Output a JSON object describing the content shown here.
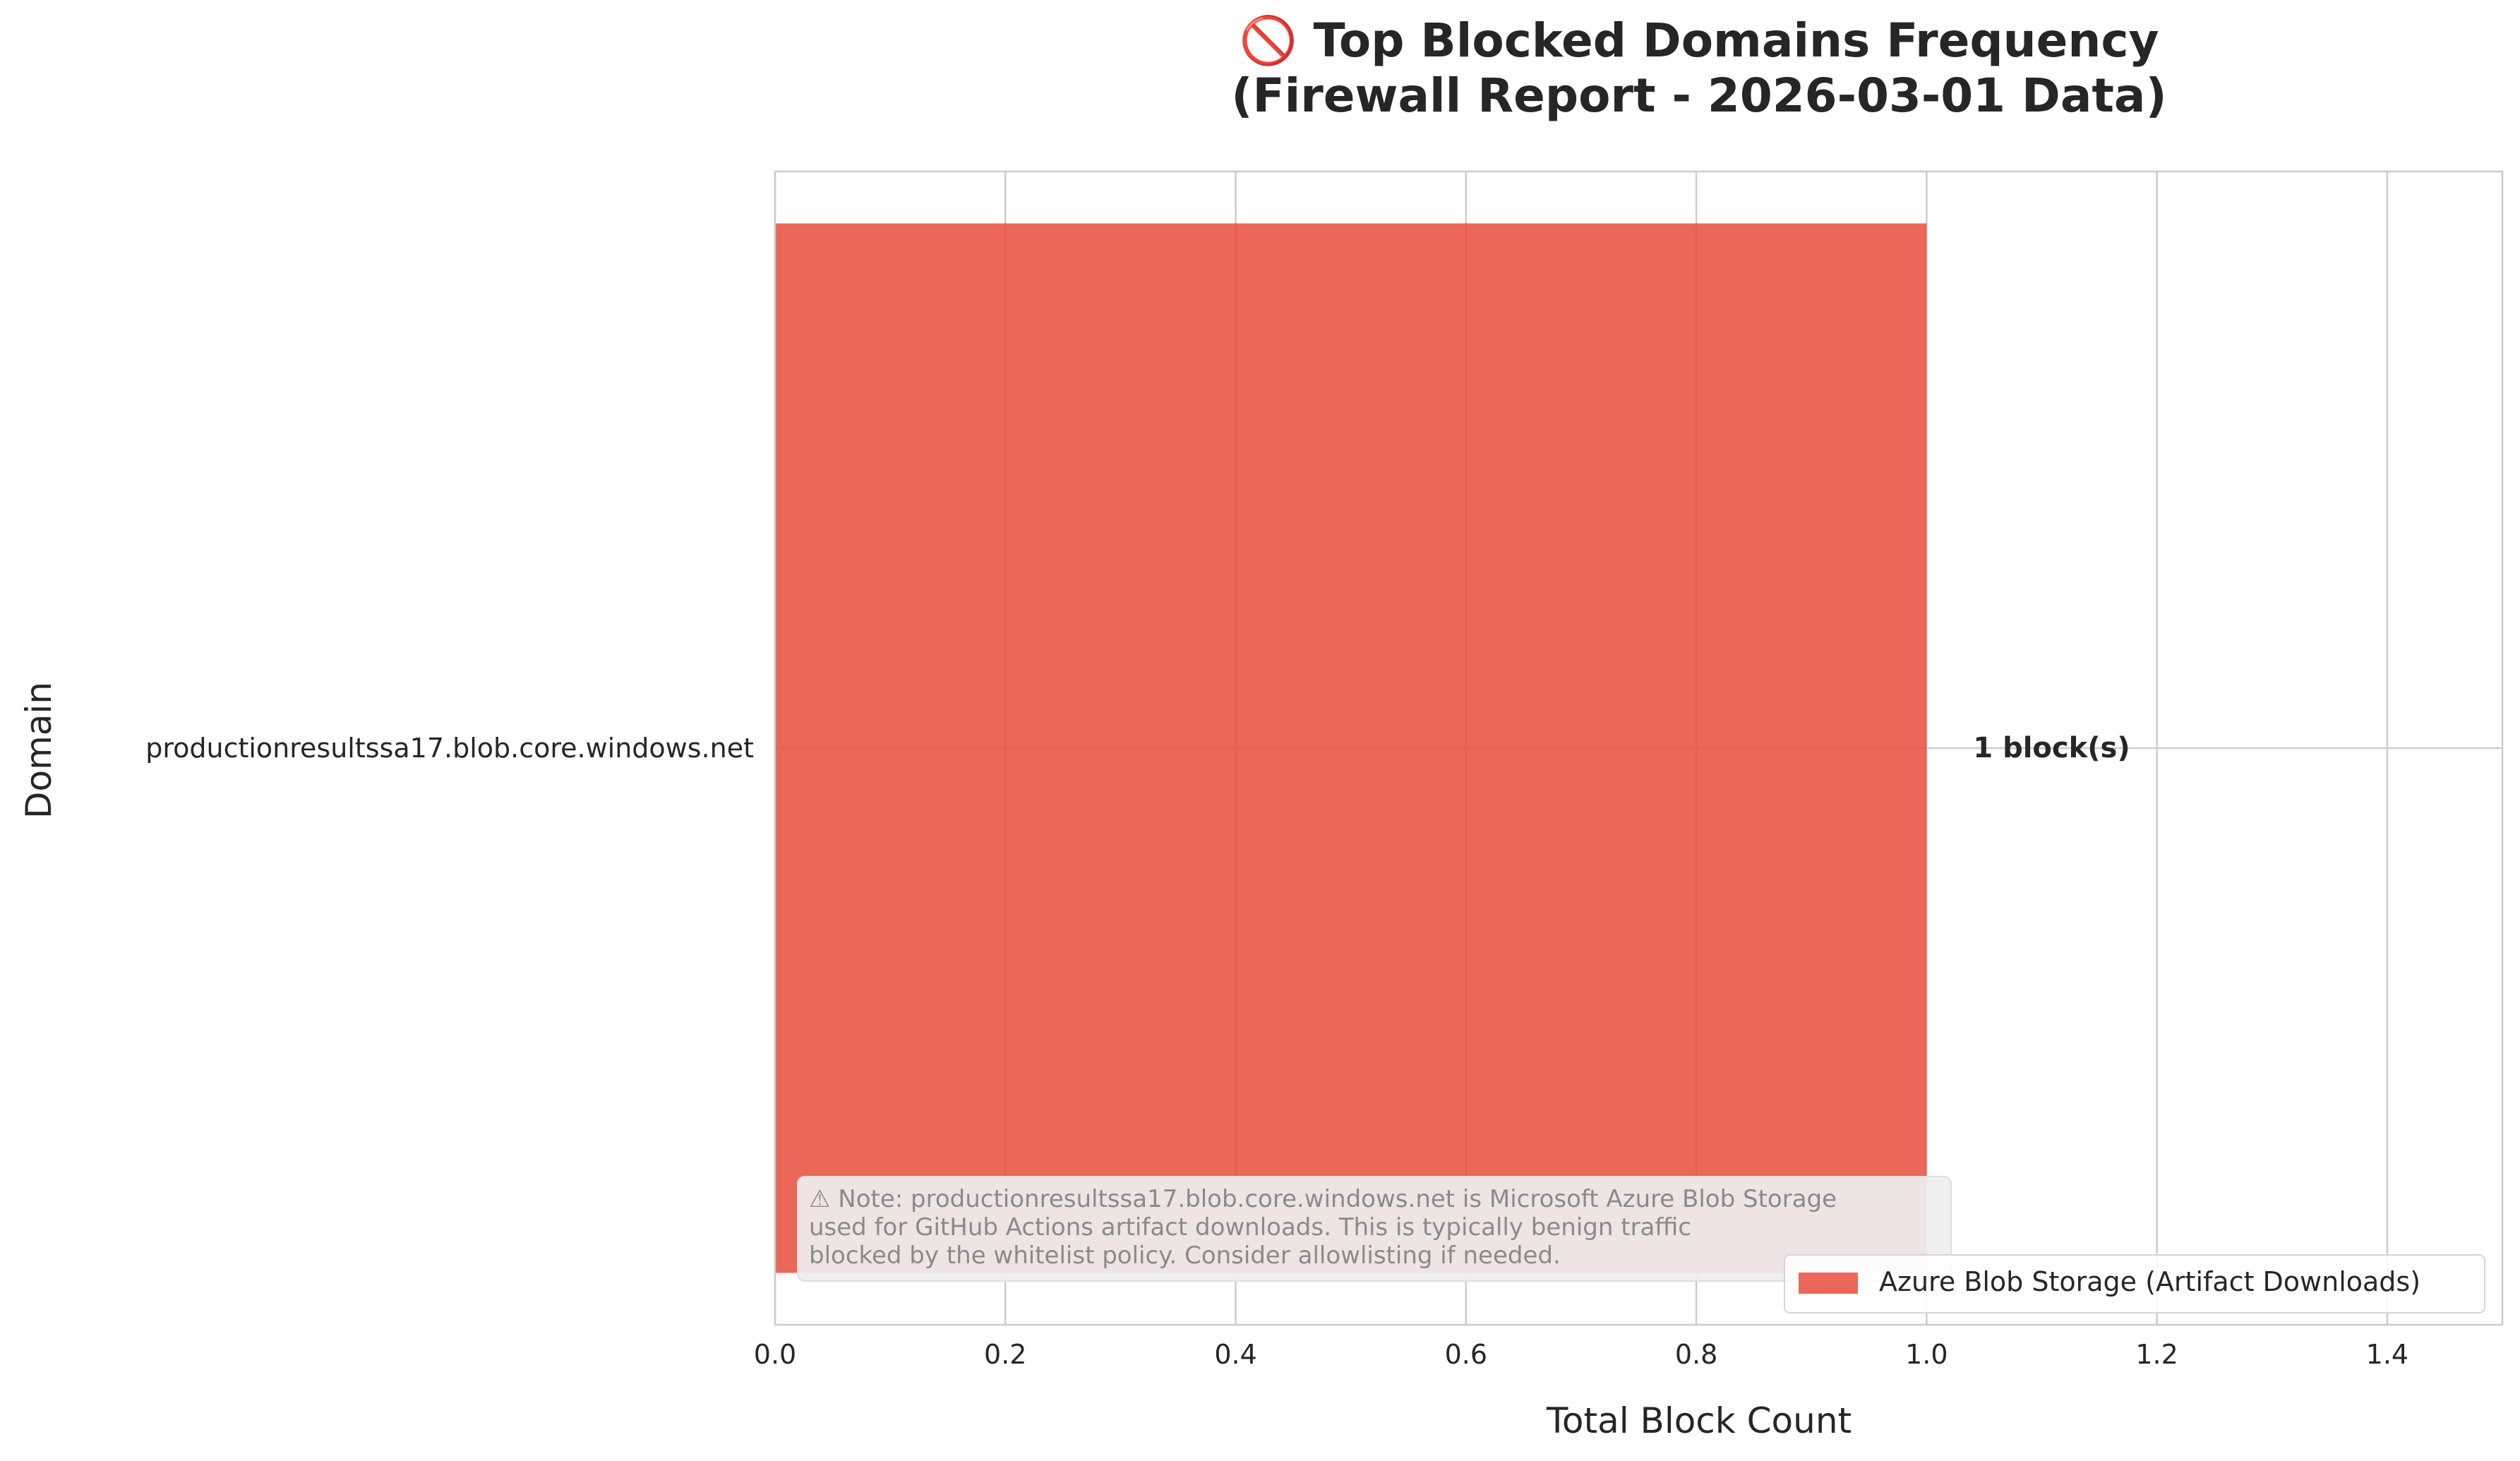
{
  "chart_data": {
    "type": "bar",
    "orientation": "horizontal",
    "title": "🚫 Top Blocked Domains Frequency\n(Firewall Report - 2026-03-01 Data)",
    "xlabel": "Total Block Count",
    "ylabel": "Domain",
    "categories": [
      "productionresultssa17.blob.core.windows.net"
    ],
    "values": [
      1
    ],
    "data_labels": [
      "1 block(s)"
    ],
    "xlim": [
      0,
      1.5
    ],
    "xticks": [
      0,
      0.2,
      0.4,
      0.6,
      0.8,
      1.0,
      1.2,
      1.4
    ],
    "xtick_labels": [
      "0.0",
      "0.2",
      "0.4",
      "0.6",
      "0.8",
      "1.0",
      "1.2",
      "1.4"
    ],
    "grid": true,
    "legend": {
      "placement": "lower-right",
      "entries": [
        {
          "label": "Azure Blob Storage (Artifact Downloads)",
          "color": "#e74c3c"
        }
      ]
    },
    "bar_color": "#e74c3c",
    "annotation": "⚠ Note: productionresultssa17.blob.core.windows.net is Microsoft Azure Blob Storage\nused for GitHub Actions artifact downloads. This is typically benign traffic\nblocked by the whitelist policy. Consider allowlisting if needed."
  }
}
